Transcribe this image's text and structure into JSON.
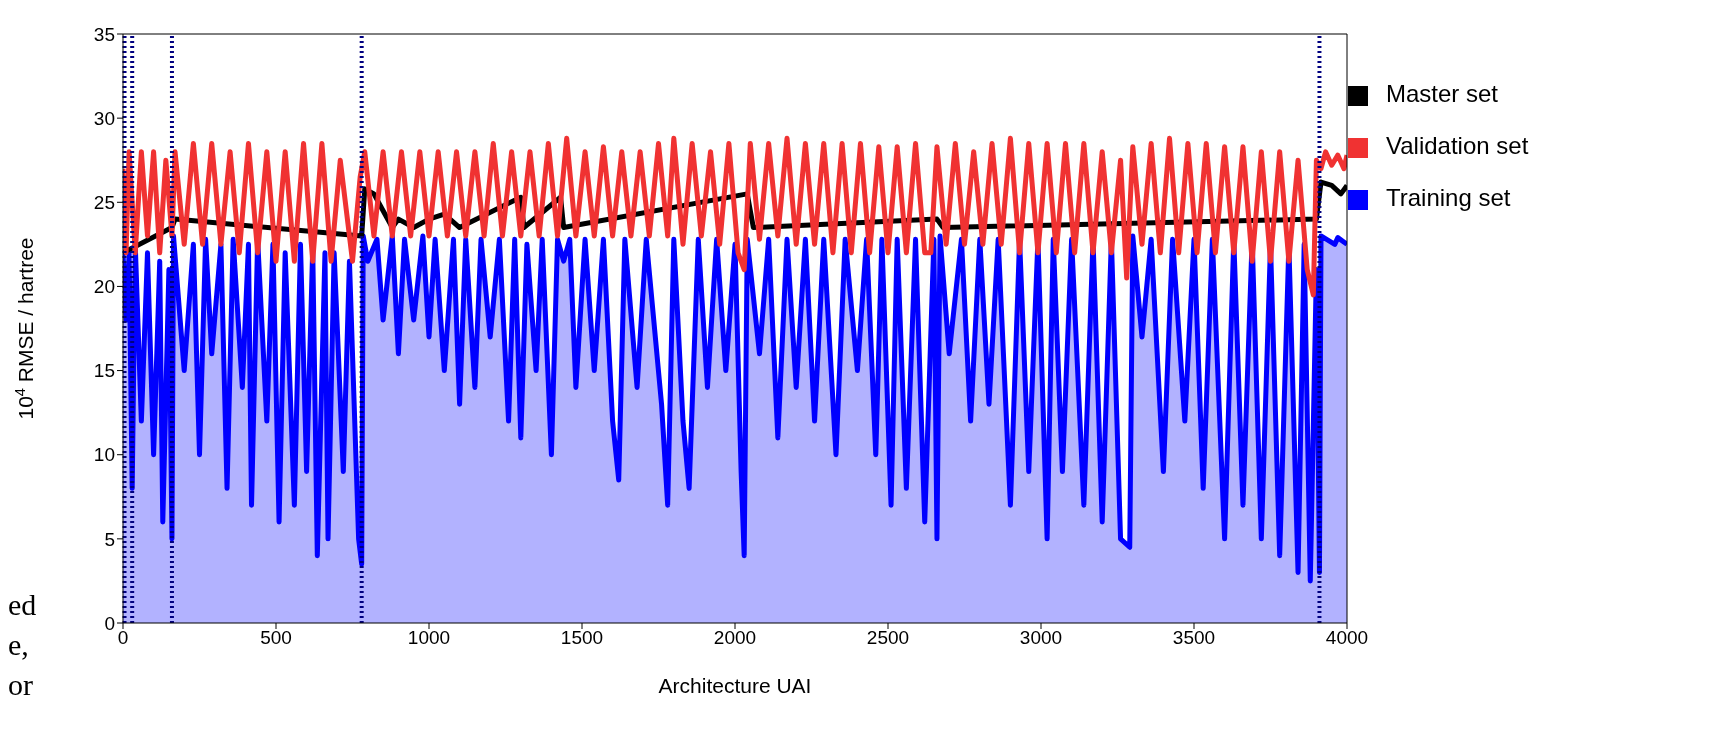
{
  "chart_data": {
    "type": "line",
    "xlabel": "Architecture UAI",
    "ylabel": "10$^{4}$ RMSE / hartree",
    "xlim": [
      0,
      4000
    ],
    "xticks": [
      0,
      500,
      1000,
      1500,
      2000,
      2500,
      3000,
      3500,
      4000
    ],
    "ylim": [
      0,
      35
    ],
    "yticks": [
      0,
      5,
      10,
      15,
      20,
      25,
      30,
      35
    ],
    "grid": false,
    "legend": "top right",
    "marker": "none",
    "line_style": "solid",
    "series": [
      {
        "name": "Master set",
        "color": "#000000",
        "x": [
          0,
          160,
          170,
          780,
          790,
          820,
          850,
          880,
          900,
          950,
          1000,
          1050,
          1100,
          1300,
          1310,
          1430,
          1440,
          2040,
          2060,
          2660,
          2680,
          3900,
          3915,
          3950,
          3980,
          4000
        ],
        "values": [
          22,
          23.5,
          24,
          23,
          25.8,
          25.5,
          24.5,
          23.5,
          24,
          23.5,
          24,
          24.3,
          23.5,
          25.3,
          23.5,
          25.3,
          23.5,
          25.5,
          23.5,
          24,
          23.5,
          24,
          26.2,
          26,
          25.5,
          26
        ]
      },
      {
        "name": "Validation set",
        "color": "#f03232",
        "x": [
          0,
          10,
          20,
          40,
          60,
          80,
          100,
          120,
          140,
          160,
          170,
          200,
          230,
          260,
          290,
          320,
          350,
          380,
          410,
          440,
          470,
          500,
          530,
          560,
          590,
          620,
          650,
          680,
          710,
          750,
          775,
          790,
          820,
          850,
          880,
          910,
          940,
          970,
          1000,
          1030,
          1060,
          1090,
          1120,
          1150,
          1180,
          1210,
          1240,
          1270,
          1300,
          1330,
          1360,
          1390,
          1420,
          1450,
          1480,
          1510,
          1540,
          1570,
          1600,
          1630,
          1660,
          1690,
          1720,
          1750,
          1780,
          1800,
          1830,
          1860,
          1890,
          1920,
          1950,
          1980,
          2010,
          2030,
          2050,
          2080,
          2110,
          2140,
          2170,
          2200,
          2230,
          2260,
          2290,
          2320,
          2350,
          2380,
          2410,
          2440,
          2470,
          2500,
          2530,
          2560,
          2590,
          2620,
          2640,
          2660,
          2690,
          2720,
          2750,
          2780,
          2810,
          2840,
          2870,
          2900,
          2930,
          2960,
          2990,
          3020,
          3050,
          3080,
          3110,
          3140,
          3170,
          3200,
          3230,
          3260,
          3280,
          3300,
          3330,
          3360,
          3390,
          3420,
          3450,
          3480,
          3510,
          3540,
          3570,
          3600,
          3630,
          3660,
          3690,
          3720,
          3750,
          3780,
          3810,
          3840,
          3870,
          3890,
          3900,
          3915,
          3930,
          3950,
          3970,
          3990,
          4000
        ],
        "values": [
          27,
          22,
          28,
          22,
          28,
          23,
          28,
          22,
          27.5,
          23,
          28,
          22.5,
          28.5,
          22.5,
          28.5,
          22.5,
          28,
          22,
          28.5,
          22,
          28,
          21.5,
          28,
          21.5,
          28.5,
          21.5,
          28.5,
          21.5,
          27.5,
          21.5,
          26.5,
          28,
          23,
          28,
          23,
          28,
          23,
          28,
          23,
          28,
          23,
          28,
          23,
          28,
          23,
          28.5,
          23,
          28,
          23,
          28,
          23,
          28.5,
          23,
          28.8,
          23,
          28,
          23,
          28.3,
          23,
          28,
          23,
          28,
          23,
          28.5,
          23,
          28.8,
          22.5,
          28.5,
          23,
          28,
          22.5,
          28.5,
          22,
          21,
          28.5,
          22.8,
          28.5,
          23,
          28.8,
          22.5,
          28.5,
          22.5,
          28.5,
          22,
          28.5,
          22,
          28.5,
          22,
          28.3,
          22,
          28.3,
          22,
          28.5,
          22,
          22,
          28.3,
          22.5,
          28.5,
          22.5,
          28,
          22.5,
          28.5,
          22.5,
          28.8,
          22,
          28.5,
          22,
          28.5,
          22,
          28.5,
          22,
          28.5,
          22,
          28,
          22,
          27.5,
          20.5,
          28.3,
          22.5,
          28.5,
          22,
          28.8,
          22,
          28.5,
          22,
          28.5,
          22,
          28.3,
          22,
          28.3,
          21.5,
          28,
          21.5,
          28,
          21.5,
          27.5,
          21,
          19.5,
          27.5,
          27,
          28,
          27.2,
          27.8,
          27,
          27.8
        ]
      },
      {
        "name": "Training set",
        "type": "area",
        "color": "#0000ff",
        "x": [
          0,
          10,
          20,
          30,
          40,
          60,
          80,
          100,
          120,
          130,
          150,
          160,
          165,
          200,
          230,
          250,
          270,
          290,
          320,
          340,
          360,
          390,
          410,
          420,
          440,
          470,
          490,
          510,
          530,
          560,
          580,
          600,
          620,
          635,
          660,
          670,
          690,
          720,
          740,
          770,
          780,
          785,
          800,
          830,
          850,
          880,
          900,
          920,
          950,
          980,
          1000,
          1020,
          1050,
          1080,
          1100,
          1120,
          1150,
          1170,
          1200,
          1230,
          1260,
          1280,
          1300,
          1320,
          1350,
          1370,
          1400,
          1420,
          1440,
          1460,
          1480,
          1510,
          1540,
          1570,
          1600,
          1620,
          1640,
          1680,
          1710,
          1760,
          1780,
          1800,
          1830,
          1850,
          1880,
          1910,
          1940,
          1970,
          2000,
          2020,
          2030,
          2040,
          2080,
          2110,
          2140,
          2170,
          2200,
          2230,
          2260,
          2290,
          2330,
          2360,
          2400,
          2430,
          2460,
          2480,
          2510,
          2530,
          2560,
          2590,
          2620,
          2650,
          2660,
          2670,
          2700,
          2740,
          2770,
          2800,
          2830,
          2860,
          2900,
          2930,
          2960,
          2990,
          3020,
          3040,
          3070,
          3100,
          3140,
          3170,
          3200,
          3230,
          3260,
          3290,
          3300,
          3330,
          3360,
          3400,
          3430,
          3470,
          3500,
          3530,
          3560,
          3600,
          3630,
          3660,
          3690,
          3720,
          3750,
          3780,
          3810,
          3840,
          3860,
          3880,
          3900,
          3910,
          3915,
          3960,
          3970,
          4000
        ],
        "values": [
          22,
          18,
          22,
          8,
          22.5,
          12,
          22,
          10,
          21.5,
          6,
          21,
          5,
          23,
          15,
          22.5,
          10,
          22.8,
          16,
          22.5,
          8,
          22.8,
          14,
          22.5,
          7,
          22.8,
          12,
          22.5,
          6,
          22,
          7,
          22.5,
          9,
          22.3,
          4,
          22,
          5,
          22,
          9,
          21.5,
          5,
          3.5,
          23,
          21.5,
          22.8,
          18,
          23,
          16,
          22.8,
          18,
          23,
          17,
          22.8,
          15,
          22.8,
          13,
          22.8,
          14,
          22.8,
          17,
          22.8,
          12,
          22.8,
          11,
          22.5,
          15,
          22.8,
          10,
          22.8,
          21.5,
          22.8,
          14,
          22.8,
          15,
          22.8,
          12,
          8.5,
          22.8,
          14,
          22.8,
          13,
          7,
          22.8,
          12,
          8,
          22.8,
          14,
          22.8,
          15,
          22.5,
          9,
          4,
          22.8,
          16,
          22.8,
          11,
          22.8,
          14,
          22.8,
          12,
          22.8,
          10,
          22.8,
          15,
          22.8,
          10,
          22.8,
          7,
          22.8,
          8,
          22.8,
          6,
          22.8,
          5,
          23,
          16,
          22.8,
          12,
          22.8,
          13,
          22.8,
          7,
          22.8,
          9,
          22.8,
          5,
          22.8,
          9,
          22.8,
          7,
          22.8,
          6,
          22.8,
          5,
          4.5,
          23,
          17,
          22.8,
          9,
          22.8,
          12,
          22.8,
          8,
          22.8,
          5,
          22.8,
          7,
          22.8,
          5,
          22.5,
          4,
          22.5,
          3,
          22.5,
          2.5,
          21,
          3,
          23,
          22.5,
          22.9,
          22.5
        ]
      }
    ],
    "ref_lines": [
      {
        "axis": "x",
        "value": 5,
        "color": "#000080",
        "line_style": "dotted"
      },
      {
        "axis": "x",
        "value": 30,
        "color": "#000080",
        "line_style": "dotted"
      },
      {
        "axis": "x",
        "value": 160,
        "color": "#000080",
        "line_style": "dotted"
      },
      {
        "axis": "x",
        "value": 780,
        "color": "#000080",
        "line_style": "dotted"
      },
      {
        "axis": "x",
        "value": 3910,
        "color": "#000080",
        "line_style": "dotted"
      }
    ],
    "annotations": [
      "ed",
      "e,",
      "or"
    ]
  }
}
